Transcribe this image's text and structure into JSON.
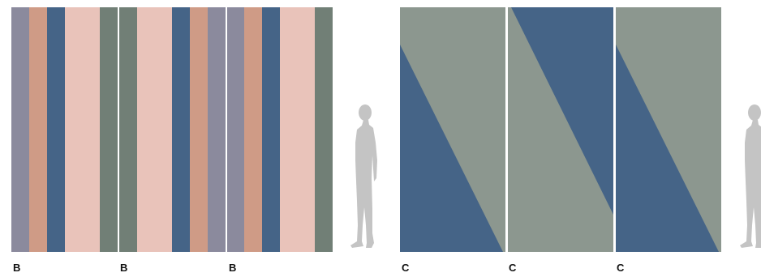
{
  "panels_b": {
    "label": "B",
    "colors": {
      "mauve": "#8b8a9d",
      "terracotta": "#cf9b86",
      "navy": "#456487",
      "blush": "#e9c3ba",
      "sage": "#717f76"
    }
  },
  "panels_c": {
    "label": "C",
    "colors": {
      "sage": "#8c978f",
      "navy": "#456487"
    }
  },
  "silhouette": {
    "icon": "person-silhouette-icon",
    "color": "#c4c4c4"
  },
  "labels": [
    "B",
    "B",
    "B",
    "C",
    "C",
    "C"
  ]
}
